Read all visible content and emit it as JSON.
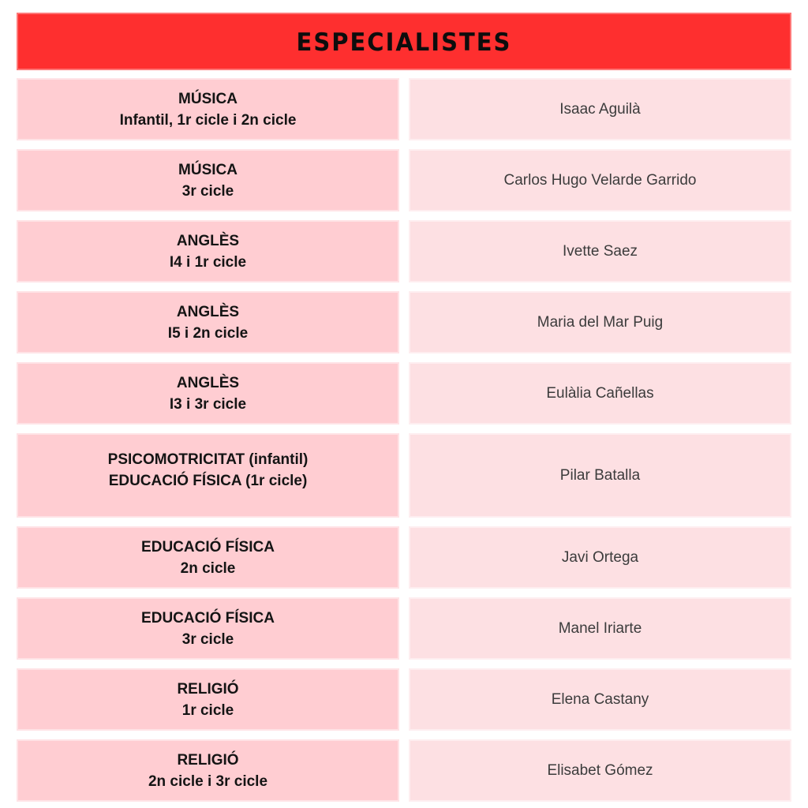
{
  "header": {
    "title": "ESPECIALISTES"
  },
  "colors": {
    "header_bg": "#fe2f2f",
    "header_text": "#0d0d0d",
    "left_cell_bg": "#ffcdd2",
    "right_cell_bg": "#fde0e3",
    "subject_text": "#141414",
    "teacher_text": "#3c3c3c",
    "page_bg": "#ffffff"
  },
  "table": {
    "rows": [
      {
        "subject": "MÚSICA",
        "detail": "Infantil, 1r cicle i 2n cicle",
        "name": "Isaac Aguilà",
        "tall": false
      },
      {
        "subject": "MÚSICA",
        "detail": "3r cicle",
        "name": "Carlos Hugo Velarde Garrido",
        "tall": false
      },
      {
        "subject": "ANGLÈS",
        "detail": "I4 i 1r cicle",
        "name": "Ivette Saez",
        "tall": false
      },
      {
        "subject": "ANGLÈS",
        "detail": "I5 i 2n cicle",
        "name": "Maria del Mar Puig",
        "tall": false
      },
      {
        "subject": "ANGLÈS",
        "detail": "I3 i 3r cicle",
        "name": "Eulàlia Cañellas",
        "tall": false
      },
      {
        "subject": "PSICOMOTRICITAT (infantil)",
        "detail": "EDUCACIÓ FÍSICA (1r cicle)",
        "name": "Pilar Batalla",
        "tall": true
      },
      {
        "subject": "EDUCACIÓ FÍSICA",
        "detail": "2n cicle",
        "name": "Javi Ortega",
        "tall": false
      },
      {
        "subject": "EDUCACIÓ FÍSICA",
        "detail": "3r cicle",
        "name": "Manel Iriarte",
        "tall": false
      },
      {
        "subject": "RELIGIÓ",
        "detail": "1r cicle",
        "name": "Elena Castany",
        "tall": false
      },
      {
        "subject": "RELIGIÓ",
        "detail": "2n cicle i 3r cicle",
        "name": "Elisabet Gómez",
        "tall": false
      }
    ]
  }
}
